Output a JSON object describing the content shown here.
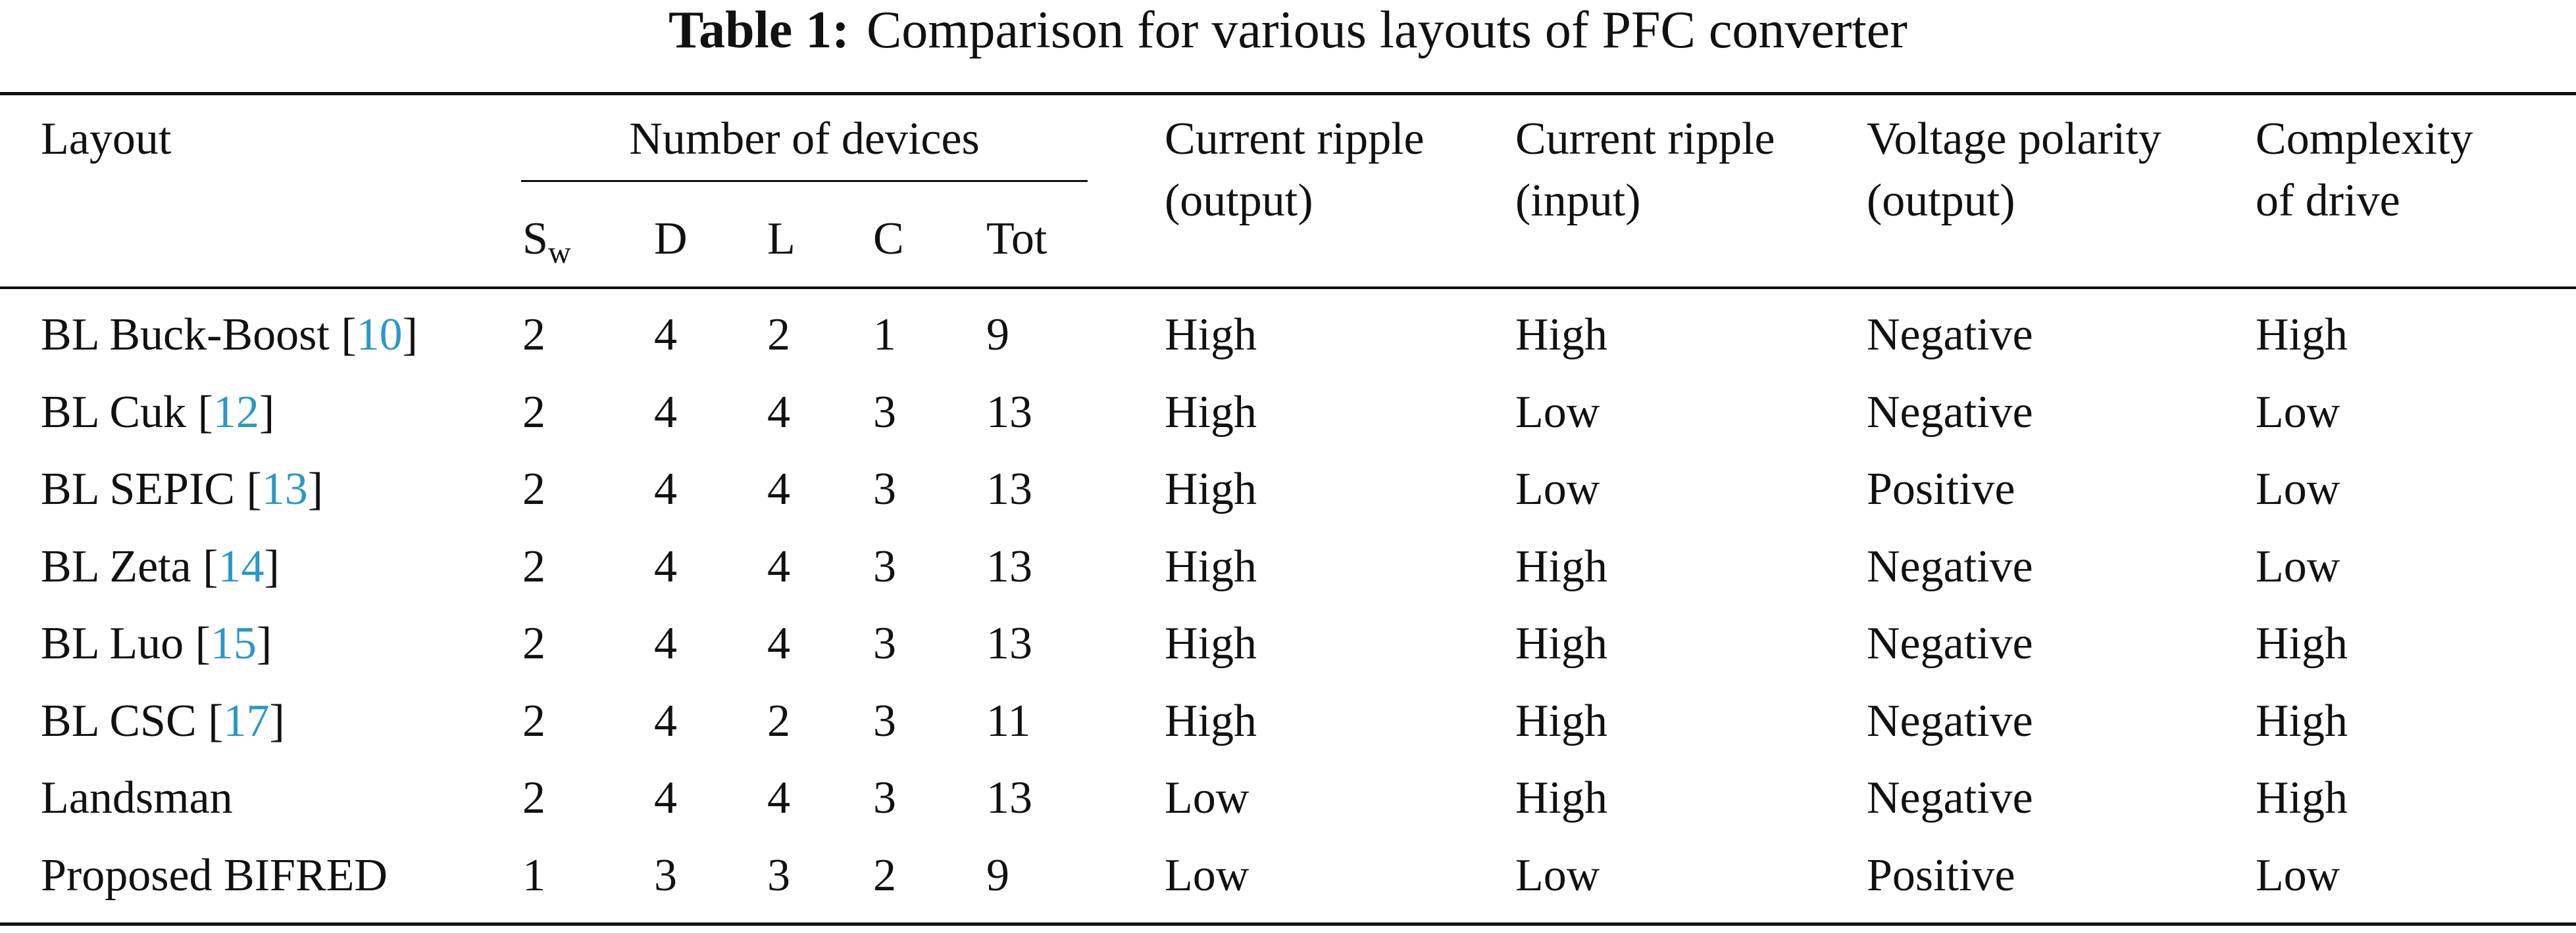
{
  "caption": {
    "label": "Table 1:",
    "text": "Comparison for various layouts of PFC converter"
  },
  "headers": {
    "layout": "Layout",
    "number_of_devices": "Number of devices",
    "sw_main": "S",
    "sw_sub": "w",
    "d": "D",
    "l": "L",
    "c": "C",
    "tot": "Tot",
    "current_ripple_output": [
      "Current ripple",
      "(output)"
    ],
    "current_ripple_input": [
      "Current ripple",
      "(input)"
    ],
    "voltage_polarity_output": [
      "Voltage polarity",
      "(output)"
    ],
    "complexity_of_drive": [
      "Complexity",
      "of drive"
    ]
  },
  "rows": [
    {
      "layout": "BL Buck-Boost",
      "ref": "10",
      "sw": "2",
      "d": "4",
      "l": "2",
      "c": "1",
      "tot": "9",
      "ripple_out": "High",
      "ripple_in": "High",
      "polarity": "Negative",
      "complexity": "High"
    },
    {
      "layout": "BL Cuk",
      "ref": "12",
      "sw": "2",
      "d": "4",
      "l": "4",
      "c": "3",
      "tot": "13",
      "ripple_out": "High",
      "ripple_in": "Low",
      "polarity": "Negative",
      "complexity": "Low"
    },
    {
      "layout": "BL SEPIC",
      "ref": "13",
      "sw": "2",
      "d": "4",
      "l": "4",
      "c": "3",
      "tot": "13",
      "ripple_out": "High",
      "ripple_in": "Low",
      "polarity": "Positive",
      "complexity": "Low"
    },
    {
      "layout": "BL Zeta",
      "ref": "14",
      "sw": "2",
      "d": "4",
      "l": "4",
      "c": "3",
      "tot": "13",
      "ripple_out": "High",
      "ripple_in": "High",
      "polarity": "Negative",
      "complexity": "Low"
    },
    {
      "layout": "BL Luo",
      "ref": "15",
      "sw": "2",
      "d": "4",
      "l": "4",
      "c": "3",
      "tot": "13",
      "ripple_out": "High",
      "ripple_in": "High",
      "polarity": "Negative",
      "complexity": "High"
    },
    {
      "layout": "BL CSC",
      "ref": "17",
      "sw": "2",
      "d": "4",
      "l": "2",
      "c": "3",
      "tot": "11",
      "ripple_out": "High",
      "ripple_in": "High",
      "polarity": "Negative",
      "complexity": "High"
    },
    {
      "layout": "Landsman",
      "ref": "",
      "sw": "2",
      "d": "4",
      "l": "4",
      "c": "3",
      "tot": "13",
      "ripple_out": "Low",
      "ripple_in": "High",
      "polarity": "Negative",
      "complexity": "High"
    },
    {
      "layout": "Proposed BIFRED",
      "ref": "",
      "sw": "1",
      "d": "3",
      "l": "3",
      "c": "2",
      "tot": "9",
      "ripple_out": "Low",
      "ripple_in": "Low",
      "polarity": "Positive",
      "complexity": "Low"
    }
  ]
}
